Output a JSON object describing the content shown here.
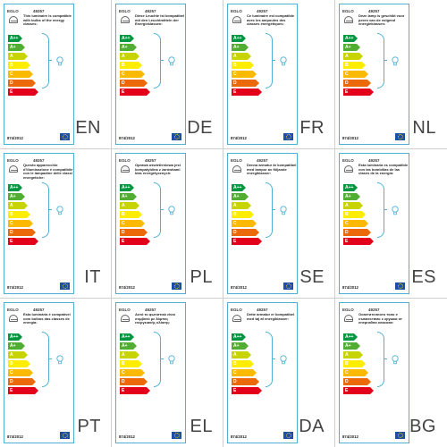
{
  "labels": [
    {
      "lang": "EN",
      "brand": "EGLO",
      "code": "49257",
      "desc": "This luminaire is compatible with bulbs of the energy classes:",
      "regulation": "874/2012"
    },
    {
      "lang": "DE",
      "brand": "EGLO",
      "code": "49257",
      "desc": "Diese Leuchte ist kompatibel mit den Leuchtmitteln der Energieklassen:",
      "regulation": "874/2012"
    },
    {
      "lang": "FR",
      "brand": "EGLO",
      "code": "49257",
      "desc": "Ce luminaire est compatible avec les ampoules des classes énergétiques:",
      "regulation": "874/2012"
    },
    {
      "lang": "NL",
      "brand": "EGLO",
      "code": "49257",
      "desc": "Deze lamp is geschikt voor peren van de volgend energieklassen:",
      "regulation": "874/2012"
    },
    {
      "lang": "IT",
      "brand": "EGLO",
      "code": "49257",
      "desc": "Questo apparecchio d'illuminazione è compatibile con le lampadine delle classi energetiche:",
      "regulation": "874/2012"
    },
    {
      "lang": "PL",
      "brand": "EGLO",
      "code": "49257",
      "desc": "Oprawa oświetleniowa jest kompatybilna z żarówkami klas energetycznych:",
      "regulation": "874/2012"
    },
    {
      "lang": "SE",
      "brand": "EGLO",
      "code": "49257",
      "desc": "Denna armatur är kompatibel med lampor av följande energiklasser:",
      "regulation": "874/2012"
    },
    {
      "lang": "ES",
      "brand": "EGLO",
      "code": "49257",
      "desc": "Esta luminaria es compatible con las bombillas de las clases de la energía:",
      "regulation": "874/2012"
    },
    {
      "lang": "PT",
      "brand": "EGLO",
      "code": "49257",
      "desc": "Esta luminária é compatível com bulbos das classes de energia:",
      "regulation": "874/2012"
    },
    {
      "lang": "EL",
      "brand": "EGLO",
      "code": "49257",
      "desc": "Αυτό το φωτιστικό είναι συμβατό με λάμπες ενεργειακής κλάσης:",
      "regulation": "874/2012"
    },
    {
      "lang": "DA",
      "brand": "EGLO",
      "code": "49257",
      "desc": "Dette armatur er kompatibel med tøj af energiklasser:",
      "regulation": "874/2012"
    },
    {
      "lang": "BG",
      "brand": "EGLO",
      "code": "49257",
      "desc": "Осветителното тяло е съвместимо с крушки от енергийни класове:",
      "regulation": "874/2012"
    }
  ],
  "energy_classes": [
    {
      "label": "A++",
      "color": "#009640"
    },
    {
      "label": "A+",
      "color": "#52ae32"
    },
    {
      "label": "A",
      "color": "#c8d400"
    },
    {
      "label": "B",
      "color": "#ffed00"
    },
    {
      "label": "C",
      "color": "#fbba00"
    },
    {
      "label": "D",
      "color": "#eb6909"
    },
    {
      "label": "E",
      "color": "#e2001a"
    }
  ],
  "colors": {
    "border": "#4fb0d4",
    "eu_blue": "#1d4fa3",
    "eu_star": "#f7d317"
  },
  "icons": [
    "lamp-shade-icon",
    "bracket-icon",
    "lightbulb-icon",
    "eu-flag-icon"
  ]
}
